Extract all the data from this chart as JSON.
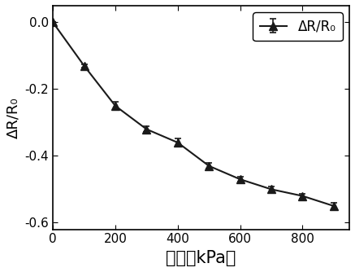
{
  "x": [
    0,
    100,
    200,
    300,
    400,
    500,
    600,
    700,
    800,
    900
  ],
  "y": [
    0.0,
    -0.13,
    -0.25,
    -0.32,
    -0.36,
    -0.43,
    -0.47,
    -0.5,
    -0.52,
    -0.55
  ],
  "yerr": [
    0.0,
    0.005,
    0.012,
    0.008,
    0.012,
    0.008,
    0.007,
    0.008,
    0.007,
    0.01
  ],
  "line_color": "#1a1a1a",
  "marker": "^",
  "marker_size": 7,
  "marker_facecolor": "#1a1a1a",
  "marker_edgecolor": "#1a1a1a",
  "line_width": 1.5,
  "xlabel": "压力（kPa）",
  "ylabel": "ΔR/R₀",
  "legend_label": "ΔR/R₀",
  "xlim": [
    0,
    950
  ],
  "ylim": [
    -0.62,
    0.05
  ],
  "xticks": [
    0,
    200,
    400,
    600,
    800
  ],
  "yticks": [
    0.0,
    -0.2,
    -0.4,
    -0.6
  ],
  "xlabel_fontsize": 15,
  "ylabel_fontsize": 13,
  "tick_fontsize": 11,
  "legend_fontsize": 12,
  "background_color": "#ffffff",
  "figure_width": 4.37,
  "figure_height": 3.34,
  "dpi": 100
}
